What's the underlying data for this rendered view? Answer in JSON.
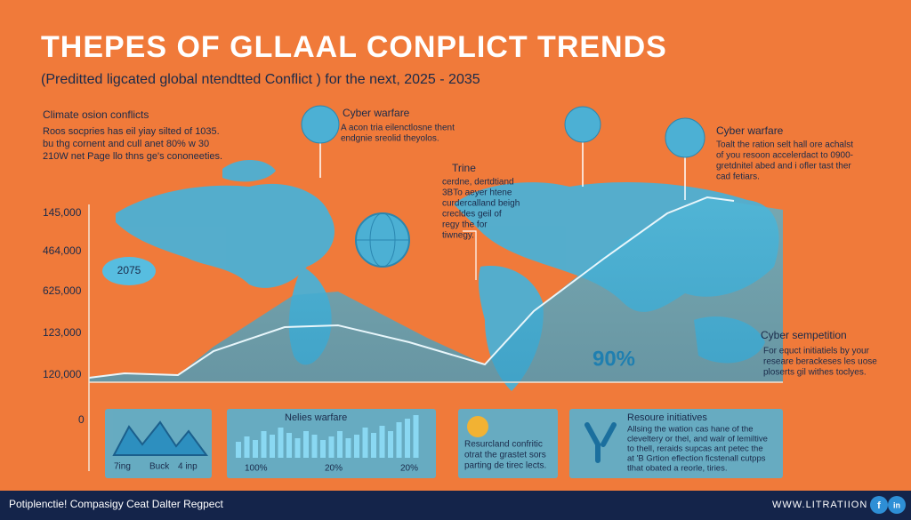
{
  "header": {
    "title": "THEPES OF GLLAAL CONPLICT TRENDS",
    "subtitle": "(Preditted ligcated global ntendtted Conflict ) for the next, 2025 - 2035"
  },
  "intro": {
    "heading": "Climate osion conflicts",
    "lines": [
      "Roos socpries has eil yiay silted of 1035.",
      "bu thg cornent and cull anet 80% w 30",
      "210W net Page llo thns ge's cononeeties."
    ]
  },
  "axis": {
    "labels": [
      "145,000",
      "464,000",
      "625,000",
      "123,000",
      "120,000",
      "0"
    ]
  },
  "callouts": [
    {
      "title": "Cyber warfare",
      "lines": [
        "A acon tria eilenctlosne thent",
        "endgnie sreolid theyolos."
      ]
    },
    {
      "title": "Trine",
      "lines": [
        "cerdne, dertdtiand",
        "3BTo aeyer htene",
        "curdercalland beigh",
        "crecldes geil of",
        "regy the for",
        "tiwnegy."
      ]
    },
    {
      "title": "Cyber warfare",
      "lines": [
        "Toalt the ration selt hall ore achalst",
        "of you resoon accelerdact to 0900-",
        "gretdnitel abed and i ofler tast ther",
        "cad fetiars."
      ]
    },
    {
      "title": "Cyber sempetition",
      "lines": [
        "For equct initiatiels by your",
        "researe berackeses les uose",
        "ploserts gil withes toclyes."
      ]
    }
  ],
  "badges": {
    "year": "2075",
    "percent": "90%"
  },
  "panels": [
    {
      "labels": [
        "7ing",
        "Buck",
        "4 inp"
      ]
    },
    {
      "title": "Nelies warfare",
      "labels": [
        "100%",
        "20%",
        "20%"
      ]
    },
    {
      "lines": [
        "Resurcland confritic",
        "otrat the grastet sors",
        "parting de tirec lects."
      ]
    },
    {
      "title": "Resoure initiatives",
      "lines": [
        "Allsing the wation cas hane of the",
        "cleveltery or thel, and walr of lemiltive",
        "to thell, reraids supcas ant petec the",
        "at 'B Grtion eflection ficstenall cutpps",
        "tlhat obated a reorle, tiries."
      ]
    }
  ],
  "footer": {
    "left": "Potiplenctie! Compasigy Ceat Dalter Regpect",
    "right": "WWW.LITRATIION",
    "icons": [
      "f",
      "in"
    ]
  }
}
